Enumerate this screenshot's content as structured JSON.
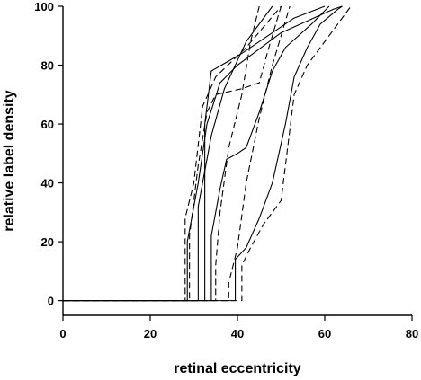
{
  "chart_data": {
    "type": "line",
    "title": "",
    "xlabel": "retinal eccentricity",
    "ylabel": "relative label density",
    "xlim": [
      0,
      80
    ],
    "ylim": [
      -5,
      100
    ],
    "xticks": [
      0,
      20,
      40,
      60,
      80
    ],
    "yticks": [
      0,
      20,
      40,
      60,
      80,
      100
    ],
    "grid": false,
    "legend": "none",
    "axis_color": "#000000",
    "line_color": "#000000",
    "series": [
      {
        "style": "solid",
        "points": [
          [
            0,
            0
          ],
          [
            28.5,
            0
          ],
          [
            28.5,
            20
          ],
          [
            31,
            40
          ],
          [
            33,
            60
          ],
          [
            36,
            74
          ],
          [
            40,
            80
          ],
          [
            50,
            91
          ],
          [
            62,
            99
          ],
          [
            64,
            100
          ]
        ]
      },
      {
        "style": "solid",
        "points": [
          [
            0,
            0
          ],
          [
            32.5,
            0
          ],
          [
            32.5,
            60
          ],
          [
            34,
            78
          ],
          [
            41,
            84
          ],
          [
            53,
            96
          ],
          [
            60,
            100
          ]
        ]
      },
      {
        "style": "solid",
        "points": [
          [
            0,
            0
          ],
          [
            31,
            0
          ],
          [
            31,
            32
          ],
          [
            34,
            56
          ],
          [
            37,
            72
          ],
          [
            42,
            88
          ],
          [
            48,
            100
          ]
        ]
      },
      {
        "style": "solid",
        "points": [
          [
            0,
            0
          ],
          [
            34,
            0
          ],
          [
            34,
            22
          ],
          [
            36,
            38
          ],
          [
            37.5,
            48
          ],
          [
            40,
            50
          ],
          [
            42,
            52
          ],
          [
            45,
            64
          ],
          [
            48,
            78
          ],
          [
            51,
            86
          ],
          [
            54,
            90
          ],
          [
            57,
            94
          ],
          [
            61,
            100
          ]
        ]
      },
      {
        "style": "solid",
        "points": [
          [
            0,
            0
          ],
          [
            39.5,
            0
          ],
          [
            39.5,
            14
          ],
          [
            42,
            18
          ],
          [
            45,
            28
          ],
          [
            48,
            40
          ],
          [
            51,
            60
          ],
          [
            53,
            76
          ],
          [
            56,
            86
          ],
          [
            59,
            94
          ],
          [
            63,
            99
          ],
          [
            64,
            100
          ]
        ]
      },
      {
        "style": "dashed",
        "points": [
          [
            0,
            0
          ],
          [
            28,
            0
          ],
          [
            28,
            28
          ],
          [
            30,
            40
          ],
          [
            32,
            66
          ],
          [
            35,
            76
          ],
          [
            42,
            86
          ],
          [
            50,
            100
          ]
        ]
      },
      {
        "style": "dashed",
        "points": [
          [
            0,
            0
          ],
          [
            29,
            0
          ],
          [
            29,
            22
          ],
          [
            31,
            46
          ],
          [
            33,
            64
          ],
          [
            35,
            70
          ],
          [
            41,
            72
          ],
          [
            45,
            74
          ],
          [
            47,
            85
          ],
          [
            50,
            100
          ]
        ]
      },
      {
        "style": "dashed",
        "points": [
          [
            0,
            0
          ],
          [
            35,
            0
          ],
          [
            35,
            12
          ],
          [
            36,
            30
          ],
          [
            38,
            52
          ],
          [
            41,
            70
          ],
          [
            43,
            88
          ],
          [
            45,
            100
          ]
        ]
      },
      {
        "style": "dashed",
        "points": [
          [
            0,
            0
          ],
          [
            38,
            0
          ],
          [
            38,
            6
          ],
          [
            40,
            18
          ],
          [
            42,
            40
          ],
          [
            45,
            62
          ],
          [
            48,
            80
          ],
          [
            52,
            100
          ]
        ]
      },
      {
        "style": "dashed",
        "points": [
          [
            0,
            0
          ],
          [
            41,
            0
          ],
          [
            41,
            12
          ],
          [
            43,
            18
          ],
          [
            46,
            26
          ],
          [
            50,
            34
          ],
          [
            53,
            70
          ],
          [
            56,
            80
          ],
          [
            59,
            86
          ],
          [
            62,
            92
          ],
          [
            66,
            100
          ]
        ]
      }
    ]
  }
}
